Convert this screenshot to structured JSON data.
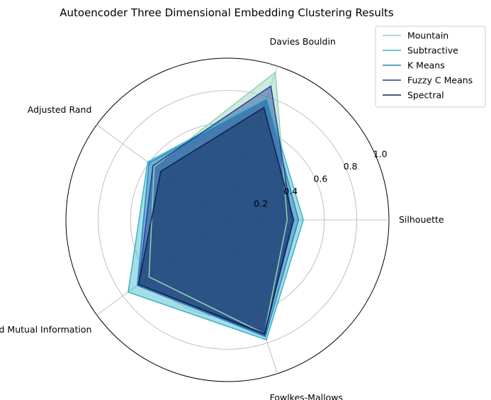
{
  "chart_data": {
    "type": "radar",
    "title": "Autoencoder Three Dimensional Embedding Clustering Results",
    "axes": [
      "Silhouette",
      "Davies Bouldin",
      "Adjusted Rand",
      "Normalized Mutual Information",
      "Fowlkes-Mallows"
    ],
    "rlim": [
      0,
      1.0
    ],
    "ticks": [
      0.2,
      0.4,
      0.6,
      0.8,
      1.0
    ],
    "tick_labels": [
      "0.2",
      "0.4",
      "0.6",
      "0.8",
      "1.0"
    ],
    "grid": true,
    "legend_position": "top-right",
    "series": [
      {
        "name": "Mountain",
        "color": "#8fd3b3",
        "values": [
          0.37,
          0.96,
          0.56,
          0.6,
          0.74
        ]
      },
      {
        "name": "Subtractive",
        "color": "#39b3c9",
        "values": [
          0.47,
          0.79,
          0.61,
          0.76,
          0.78
        ]
      },
      {
        "name": "K Means",
        "color": "#2b83b8",
        "values": [
          0.44,
          0.78,
          0.6,
          0.69,
          0.76
        ]
      },
      {
        "name": "Fuzzy C Means",
        "color": "#253f96",
        "values": [
          0.4,
          0.87,
          0.57,
          0.68,
          0.75
        ]
      },
      {
        "name": "Spectral",
        "color": "#0c2350",
        "values": [
          0.41,
          0.73,
          0.51,
          0.68,
          0.74
        ]
      }
    ]
  }
}
